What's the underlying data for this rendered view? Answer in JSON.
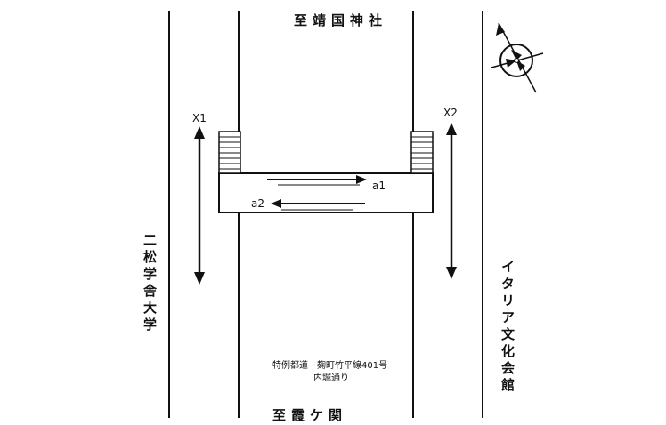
{
  "labels": {
    "north_destination": "至靖国神社",
    "south_destination": "至霞ケ関",
    "west_building": "二松学舎大学",
    "east_building": "イタリア文化会館",
    "road_name_line1": "特例都道　麹町竹平線401号",
    "road_name_line2": "内堀通り"
  },
  "measurement_points": {
    "x1": "X1",
    "x2": "X2",
    "a1": "a1",
    "a2": "a2"
  },
  "icons": {
    "compass": "north-arrow-compass-icon"
  },
  "colors": {
    "ink": "#111111",
    "paper": "#ffffff"
  }
}
